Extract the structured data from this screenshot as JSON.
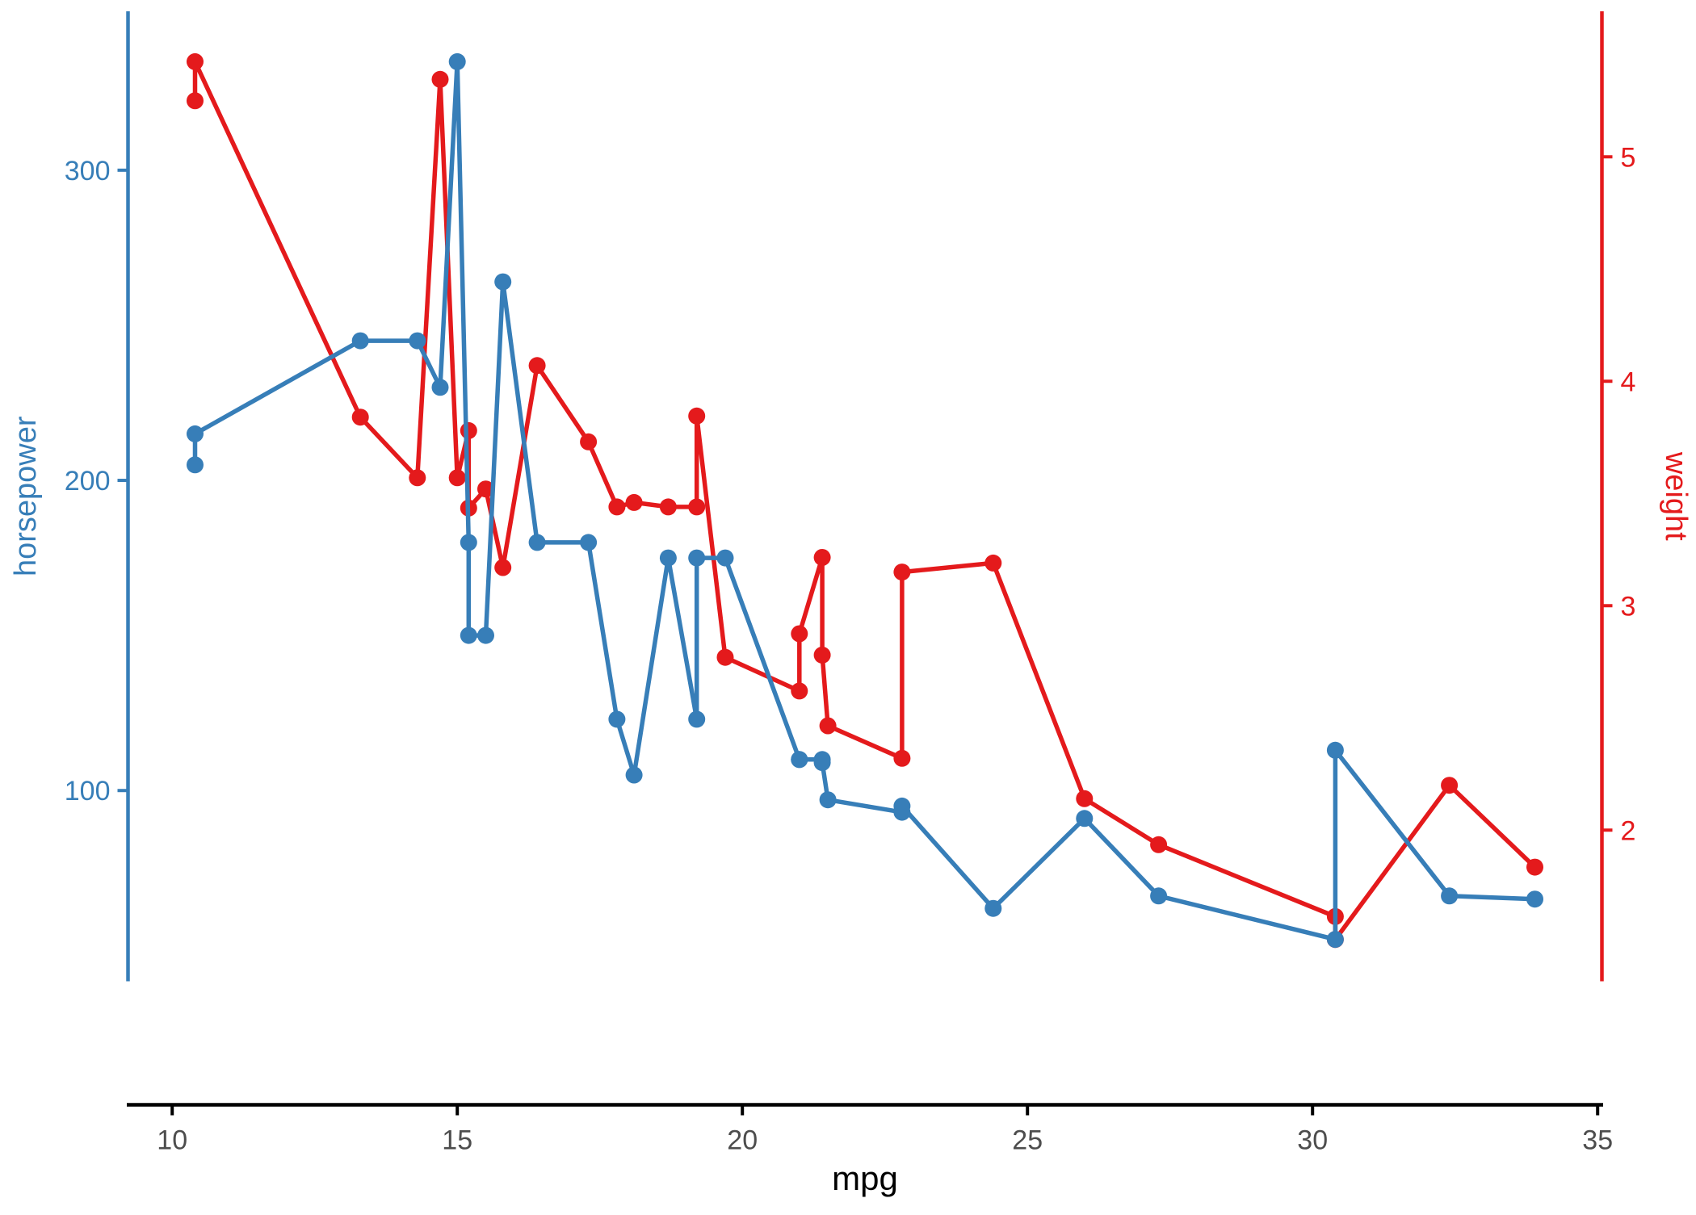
{
  "chart_data": {
    "type": "line",
    "title": "",
    "xlabel": "mpg",
    "x_ticks": [
      10,
      15,
      20,
      25,
      30,
      35
    ],
    "x_domain": [
      9.225,
      35.075
    ],
    "background": "#ffffff",
    "x_axis": {
      "line_color": "#000000",
      "tick_label_color": "#4d4d4d",
      "title_color": "#000000"
    },
    "axes": {
      "left": {
        "label": "horsepower",
        "ticks": [
          100,
          200,
          300
        ],
        "domain": [
          37.85,
          349.15
        ],
        "color": "#377EB8"
      },
      "right": {
        "label": "weight",
        "ticks": [
          2,
          3,
          4,
          5
        ],
        "domain": [
          1.3175,
          5.6196
        ],
        "color": "#E41A1C"
      }
    },
    "series": [
      {
        "name": "weight",
        "axis": "right",
        "color": "#E41A1C",
        "points": [
          [
            10.4,
            5.25
          ],
          [
            10.4,
            5.424
          ],
          [
            13.3,
            3.84
          ],
          [
            14.3,
            3.57
          ],
          [
            14.7,
            5.345
          ],
          [
            15.0,
            3.57
          ],
          [
            15.2,
            3.78
          ],
          [
            15.2,
            3.435
          ],
          [
            15.5,
            3.52
          ],
          [
            15.8,
            3.17
          ],
          [
            16.4,
            4.07
          ],
          [
            17.3,
            3.73
          ],
          [
            17.8,
            3.44
          ],
          [
            18.1,
            3.46
          ],
          [
            18.7,
            3.44
          ],
          [
            19.2,
            3.44
          ],
          [
            19.2,
            3.845
          ],
          [
            19.7,
            2.77
          ],
          [
            21.0,
            2.62
          ],
          [
            21.0,
            2.875
          ],
          [
            21.4,
            3.215
          ],
          [
            21.4,
            2.78
          ],
          [
            21.5,
            2.465
          ],
          [
            22.8,
            2.32
          ],
          [
            22.8,
            3.15
          ],
          [
            24.4,
            3.19
          ],
          [
            26.0,
            2.14
          ],
          [
            27.3,
            1.935
          ],
          [
            30.4,
            1.615
          ],
          [
            30.4,
            1.513
          ],
          [
            32.4,
            2.2
          ],
          [
            33.9,
            1.835
          ]
        ]
      },
      {
        "name": "horsepower",
        "axis": "left",
        "color": "#377EB8",
        "points": [
          [
            10.4,
            205
          ],
          [
            10.4,
            215
          ],
          [
            13.3,
            245
          ],
          [
            14.3,
            245
          ],
          [
            14.7,
            230
          ],
          [
            15.0,
            335
          ],
          [
            15.2,
            180
          ],
          [
            15.2,
            150
          ],
          [
            15.5,
            150
          ],
          [
            15.8,
            264
          ],
          [
            16.4,
            180
          ],
          [
            17.3,
            180
          ],
          [
            17.8,
            123
          ],
          [
            18.1,
            105
          ],
          [
            18.7,
            175
          ],
          [
            19.2,
            123
          ],
          [
            19.2,
            175
          ],
          [
            19.7,
            175
          ],
          [
            21.0,
            110
          ],
          [
            21.0,
            110
          ],
          [
            21.4,
            110
          ],
          [
            21.4,
            109
          ],
          [
            21.5,
            97
          ],
          [
            22.8,
            93
          ],
          [
            22.8,
            95
          ],
          [
            24.4,
            62
          ],
          [
            26.0,
            91
          ],
          [
            27.3,
            66
          ],
          [
            30.4,
            52
          ],
          [
            30.4,
            113
          ],
          [
            32.4,
            66
          ],
          [
            33.9,
            65
          ]
        ]
      }
    ]
  }
}
